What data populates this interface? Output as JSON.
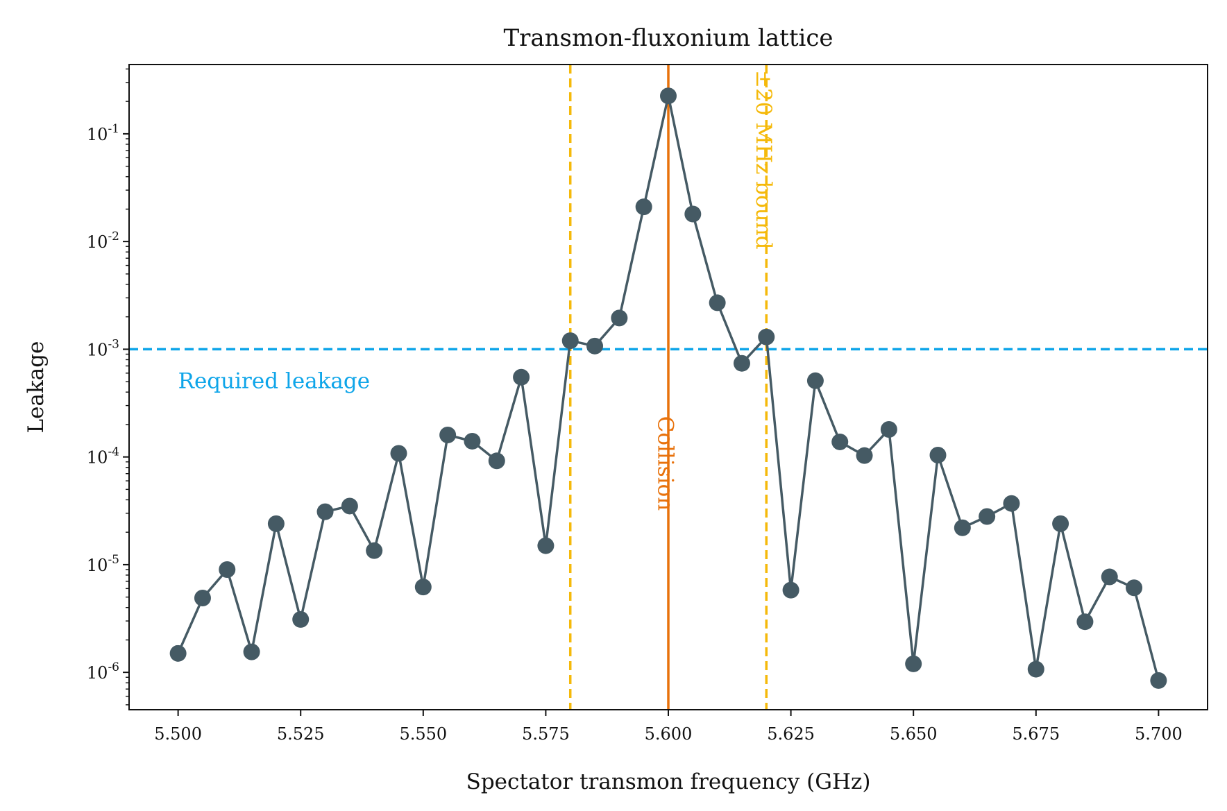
{
  "chart_data": {
    "type": "line",
    "title": "Transmon-fluxonium lattice",
    "xlabel": "Spectator transmon frequency (GHz)",
    "ylabel": "Leakage",
    "xlim": [
      5.49,
      5.71
    ],
    "ylim": [
      4.5e-07,
      0.44
    ],
    "yscale": "log",
    "grid": false,
    "x_ticks": [
      5.5,
      5.525,
      5.55,
      5.575,
      5.6,
      5.625,
      5.65,
      5.675,
      5.7
    ],
    "x_tick_labels": [
      "5.500",
      "5.525",
      "5.550",
      "5.575",
      "5.600",
      "5.625",
      "5.650",
      "5.675",
      "5.700"
    ],
    "y_ticks": [
      {
        "value": 1e-06,
        "base": "10",
        "exp": "-6"
      },
      {
        "value": 1e-05,
        "base": "10",
        "exp": "-5"
      },
      {
        "value": 0.0001,
        "base": "10",
        "exp": "-4"
      },
      {
        "value": 0.001,
        "base": "10",
        "exp": "-3"
      },
      {
        "value": 0.01,
        "base": "10",
        "exp": "-2"
      },
      {
        "value": 0.1,
        "base": "10",
        "exp": "-1"
      }
    ],
    "series": [
      {
        "color": "#455a64",
        "x": [
          5.5,
          5.505,
          5.51,
          5.515,
          5.52,
          5.525,
          5.53,
          5.535,
          5.54,
          5.545,
          5.55,
          5.555,
          5.56,
          5.565,
          5.57,
          5.575,
          5.58,
          5.585,
          5.59,
          5.595,
          5.6,
          5.605,
          5.61,
          5.615,
          5.62,
          5.625,
          5.63,
          5.635,
          5.64,
          5.645,
          5.65,
          5.655,
          5.66,
          5.665,
          5.67,
          5.675,
          5.68,
          5.685,
          5.69,
          5.695,
          5.7
        ],
        "y": [
          1.5e-06,
          4.9e-06,
          9e-06,
          1.55e-06,
          2.4e-05,
          3.1e-06,
          3.1e-05,
          3.5e-05,
          1.35e-05,
          0.000108,
          6.2e-06,
          0.00016,
          0.00014,
          9.2e-05,
          0.00055,
          1.5e-05,
          0.0012,
          0.00107,
          0.00195,
          0.021,
          0.225,
          0.018,
          0.0027,
          0.00074,
          0.0013,
          5.8e-06,
          0.00051,
          0.000138,
          0.000103,
          0.00018,
          1.2e-06,
          0.000104,
          2.2e-05,
          2.8e-05,
          3.7e-05,
          1.07e-06,
          2.4e-05,
          2.95e-06,
          7.7e-06,
          6.1e-06,
          8.4e-07
        ]
      }
    ],
    "reference_lines": [
      {
        "orientation": "horizontal",
        "value": 0.001,
        "style": "dashed",
        "color": "#0ea5e9",
        "label": "Required leakage"
      },
      {
        "orientation": "vertical",
        "value": 5.6,
        "style": "solid",
        "color": "#e8720c",
        "label": "Collision"
      },
      {
        "orientation": "vertical",
        "value": 5.58,
        "style": "dashed",
        "color": "#f5b90a",
        "label": ""
      },
      {
        "orientation": "vertical",
        "value": 5.62,
        "style": "dashed",
        "color": "#f5b90a",
        "label": "±20 MHz bound"
      }
    ]
  }
}
